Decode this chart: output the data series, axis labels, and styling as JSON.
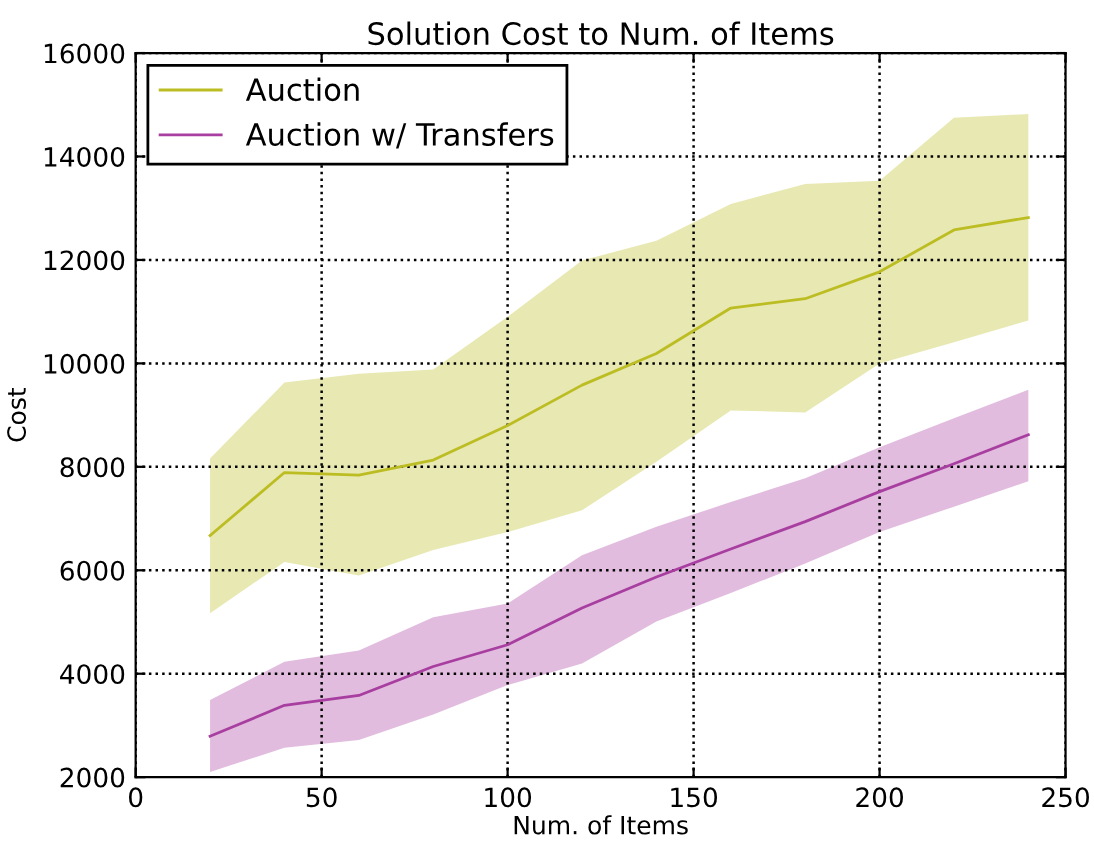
{
  "chart_data": {
    "type": "line",
    "title": "Solution Cost to Num. of Items",
    "xlabel": "Num. of Items",
    "ylabel": "Cost",
    "x": [
      20,
      40,
      60,
      80,
      100,
      120,
      140,
      160,
      180,
      200,
      220,
      240
    ],
    "series": [
      {
        "name": "Auction",
        "color": "#bcbd22",
        "values": [
          6670,
          7890,
          7840,
          8130,
          8800,
          9580,
          10190,
          11070,
          11250,
          11770,
          12580,
          12820
        ],
        "lower": [
          5170,
          6160,
          5900,
          6390,
          6740,
          7160,
          8100,
          9090,
          9050,
          10000,
          10410,
          10830
        ],
        "upper": [
          8160,
          9630,
          9800,
          9880,
          10900,
          11990,
          12370,
          13080,
          13470,
          13530,
          14750,
          14820
        ]
      },
      {
        "name": "Auction w/ Transfers",
        "color": "#a83ea0",
        "values": [
          2790,
          3390,
          3580,
          4140,
          4560,
          5270,
          5870,
          6410,
          6940,
          7520,
          8060,
          8620
        ],
        "lower": [
          2100,
          2570,
          2720,
          3210,
          3780,
          4200,
          5010,
          5560,
          6130,
          6740,
          7230,
          7720
        ],
        "upper": [
          3490,
          4230,
          4450,
          5090,
          5360,
          6290,
          6840,
          7320,
          7780,
          8380,
          8940,
          9490
        ]
      }
    ],
    "xlim": [
      0,
      250
    ],
    "xticks": [
      0,
      50,
      100,
      150,
      200,
      250
    ],
    "ylim": [
      2000,
      16000
    ],
    "yticks": [
      2000,
      4000,
      6000,
      8000,
      10000,
      12000,
      14000,
      16000
    ],
    "grid": true,
    "legend": "top left",
    "line_style": "solid",
    "marker": "none"
  }
}
